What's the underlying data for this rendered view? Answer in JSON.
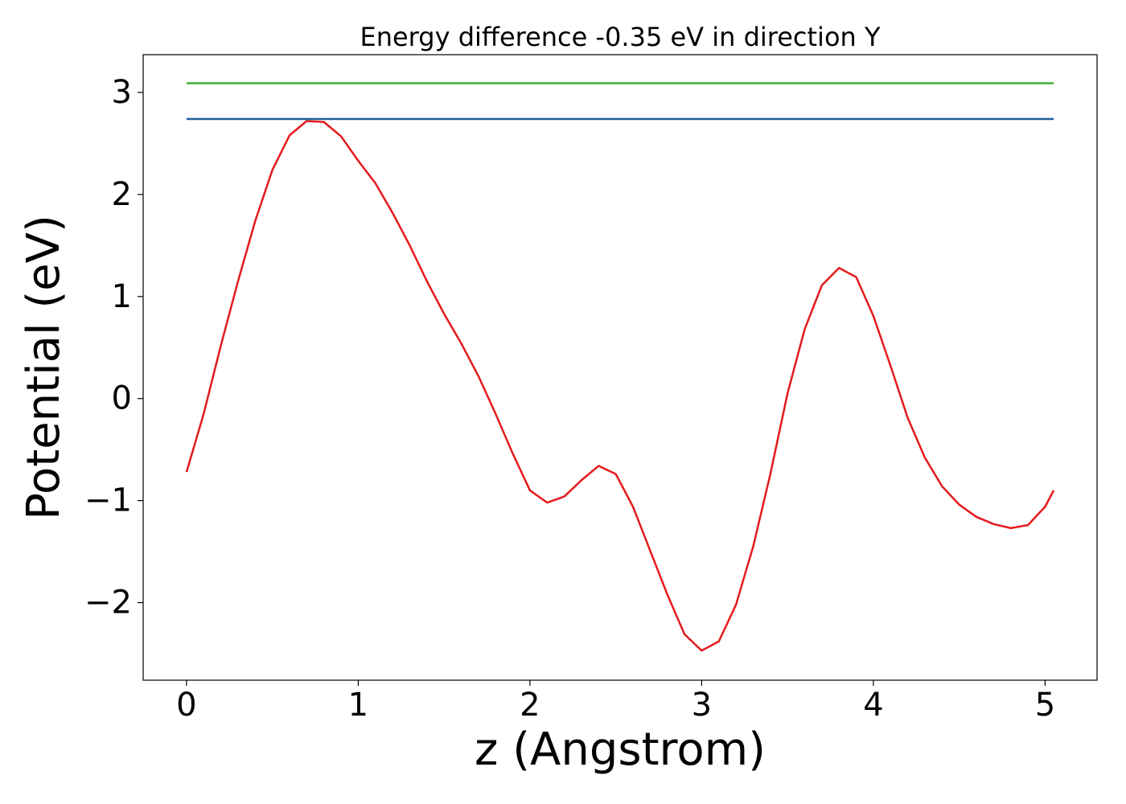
{
  "chart_data": {
    "type": "line",
    "title": "Energy difference -0.35 eV in direction Y",
    "xlabel": "z (Angstrom)",
    "ylabel": "Potential (eV)",
    "xlim": [
      -0.2525,
      5.3025
    ],
    "ylim": [
      -2.76,
      3.37
    ],
    "xticks": [
      0,
      1,
      2,
      3,
      4,
      5
    ],
    "yticks": [
      {
        "value": -2,
        "label": "−2"
      },
      {
        "value": -1,
        "label": "−1"
      },
      0,
      1,
      2,
      3
    ],
    "grid": false,
    "series": [
      {
        "color": "#e41a1c",
        "x": [
          0,
          0.1,
          0.2,
          0.3,
          0.4,
          0.5,
          0.6,
          0.7,
          0.8,
          0.9,
          1.0,
          1.1,
          1.2,
          1.3,
          1.4,
          1.5,
          1.6,
          1.7,
          1.8,
          1.9,
          2.0,
          2.1,
          2.2,
          2.3,
          2.4,
          2.5,
          2.6,
          2.7,
          2.8,
          2.9,
          3.0,
          3.1,
          3.2,
          3.3,
          3.4,
          3.5,
          3.6,
          3.7,
          3.8,
          3.9,
          4.0,
          4.1,
          4.2,
          4.3,
          4.4,
          4.5,
          4.6,
          4.7,
          4.8,
          4.9,
          5.0,
          5.05
        ],
        "values": [
          -0.72,
          -0.15,
          0.52,
          1.15,
          1.74,
          2.24,
          2.58,
          2.72,
          2.71,
          2.57,
          2.33,
          2.11,
          1.82,
          1.5,
          1.15,
          0.83,
          0.54,
          0.22,
          -0.15,
          -0.54,
          -0.9,
          -1.02,
          -0.96,
          -0.8,
          -0.66,
          -0.74,
          -1.06,
          -1.49,
          -1.92,
          -2.31,
          -2.47,
          -2.38,
          -2.02,
          -1.45,
          -0.74,
          0.05,
          0.68,
          1.11,
          1.28,
          1.19,
          0.81,
          0.32,
          -0.19,
          -0.58,
          -0.86,
          -1.04,
          -1.16,
          -1.23,
          -1.27,
          -1.24,
          -1.06,
          -0.9
        ]
      },
      {
        "color": "#1f5f9b",
        "x": [
          0,
          5.05
        ],
        "values": [
          2.74,
          2.74
        ]
      },
      {
        "color": "#3cae3c",
        "x": [
          0,
          5.05
        ],
        "values": [
          3.09,
          3.09
        ]
      }
    ]
  }
}
